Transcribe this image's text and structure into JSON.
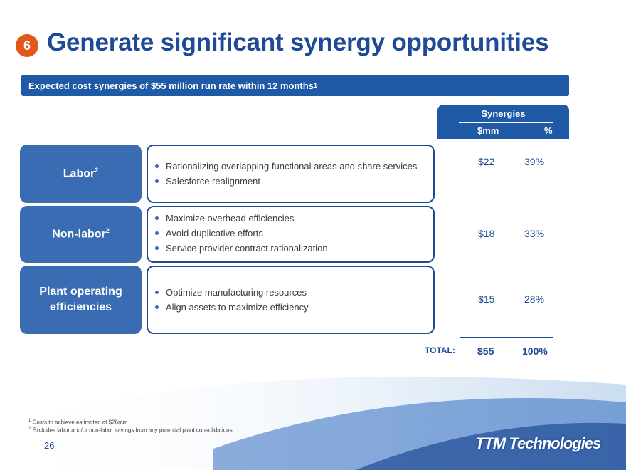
{
  "slide": {
    "badge": "6",
    "title": "Generate significant synergy opportunities",
    "banner": "Expected cost synergies of $55 million run rate within 12 months",
    "banner_sup": "1"
  },
  "synergies_header": {
    "title": "Synergies",
    "col1": "$mm",
    "col2": "%"
  },
  "categories": [
    {
      "label": "Labor",
      "sup": "2",
      "bullets": [
        "Rationalizing overlapping functional areas and share services",
        "Salesforce realignment"
      ],
      "mm": "$22",
      "pct": "39%"
    },
    {
      "label": "Non-labor",
      "sup": "2",
      "bullets": [
        "Maximize overhead efficiencies",
        "Avoid duplicative efforts",
        "Service provider contract rationalization"
      ],
      "mm": "$18",
      "pct": "33%"
    },
    {
      "label_line1": "Plant operating",
      "label_line2": "efficiencies",
      "bullets": [
        "Optimize manufacturing resources",
        "Align assets to maximize efficiency"
      ],
      "mm": "$15",
      "pct": "28%"
    }
  ],
  "total": {
    "label": "TOTAL:",
    "mm": "$55",
    "pct": "100%"
  },
  "footnotes": [
    {
      "num": "1",
      "text": "Costs to achieve estimated at $26mm"
    },
    {
      "num": "2",
      "text": "Excludes labor and/or non-labor savings from any potential plant consolidations"
    }
  ],
  "page_number": "26",
  "logo": "TTM Technologies",
  "colors": {
    "accent": "#1f4b96",
    "banner": "#1f5aa6",
    "category": "#3a6cb3",
    "badge": "#e4571b"
  }
}
